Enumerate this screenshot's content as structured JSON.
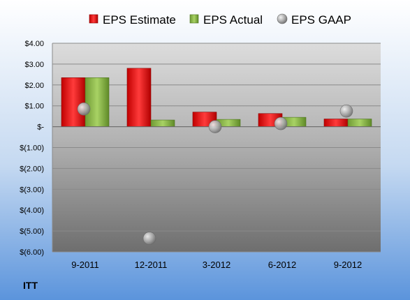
{
  "chart_data": {
    "type": "bar",
    "categories": [
      "9-2011",
      "12-2011",
      "3-2012",
      "6-2012",
      "9-2012"
    ],
    "series": [
      {
        "name": "EPS Estimate",
        "kind": "bar",
        "values": [
          2.35,
          2.8,
          0.7,
          0.63,
          0.37
        ],
        "color": "#e02020"
      },
      {
        "name": "EPS Actual",
        "kind": "bar",
        "values": [
          2.35,
          0.32,
          0.35,
          0.45,
          0.37
        ],
        "color": "#92c050"
      },
      {
        "name": "EPS GAAP",
        "kind": "marker",
        "values": [
          0.85,
          -5.35,
          0.0,
          0.15,
          0.75
        ],
        "color": "#a0a0a0"
      }
    ],
    "ylim": [
      -6,
      4
    ],
    "yticks": [
      4,
      3,
      2,
      1,
      0,
      -1,
      -2,
      -3,
      -4,
      -5,
      -6
    ],
    "ytick_labels": [
      "$4.00",
      "$3.00",
      "$2.00",
      "$1.00",
      "$-",
      "$(1.00)",
      "$(2.00)",
      "$(3.00)",
      "$(4.00)",
      "$(5.00)",
      "$(6.00)"
    ],
    "grid": true,
    "legend_position": "top"
  },
  "company_label": "ITT"
}
